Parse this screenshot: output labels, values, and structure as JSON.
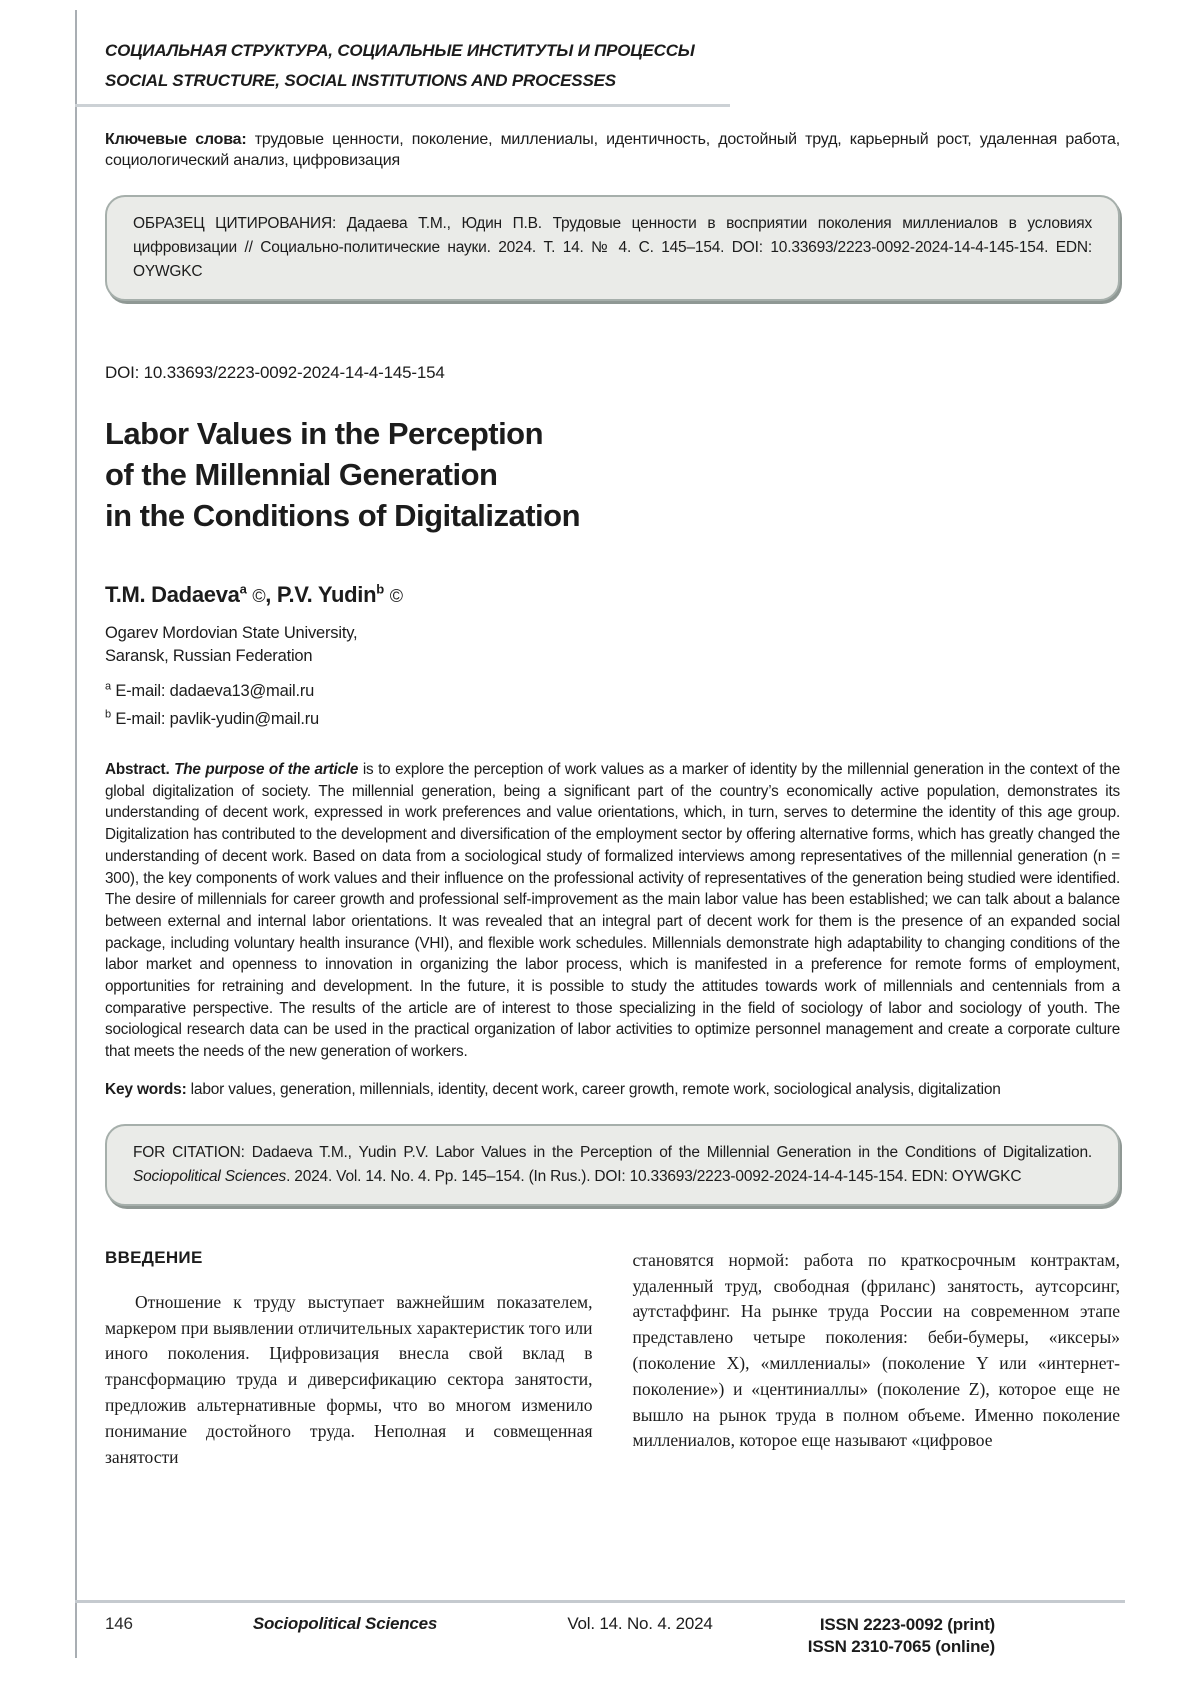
{
  "header": {
    "section_ru": "СОЦИАЛЬНАЯ СТРУКТУРА, СОЦИАЛЬНЫЕ ИНСТИТУТЫ И ПРОЦЕССЫ",
    "section_en": "SOCIAL STRUCTURE, SOCIAL INSTITUTIONS AND PROCESSES"
  },
  "keywords_ru": {
    "label": "Ключевые слова:",
    "text": " трудовые ценности, поколение, миллениалы, идентичность, достойный труд, карьерный рост, удаленная работа, социологический анализ, цифровизация"
  },
  "citation_ru": {
    "text": "ОБРАЗЕЦ ЦИТИРОВАНИЯ: Дадаева Т.М., Юдин П.В. Трудовые ценности в восприятии поколения миллениалов в условиях цифровизации // Социально-политические науки. 2024. Т. 14. № 4. С. 145–154. DOI: 10.33693/2223-0092-2024-14-4-145-154. EDN: OYWGKC"
  },
  "article": {
    "doi": "DOI: 10.33693/2223-0092-2024-14-4-145-154",
    "title": "Labor Values in the Perception\nof the Millennial Generation\nin the Conditions of Digitalization",
    "authors": [
      {
        "name": "T.M. Dadaeva",
        "sup": "a",
        "mark": "©",
        "sep": ", "
      },
      {
        "name": "P.V. Yudin",
        "sup": "b",
        "mark": "©",
        "sep": ""
      }
    ],
    "affiliation": "Ogarev Mordovian State University,\nSaransk, Russian Federation",
    "emails": [
      {
        "sup": "a",
        "text": "E-mail: dadaeva13@mail.ru"
      },
      {
        "sup": "b",
        "text": "E-mail: pavlik-yudin@mail.ru"
      }
    ]
  },
  "abstract": {
    "label": "Abstract.",
    "lead": " The purpose of the article",
    "text": " is to explore the perception of work values as a marker of identity by the millennial generation in the context of the global digitalization of society. The millennial generation, being a significant part of the country’s economically active population, demonstrates its understanding of decent work, expressed in work preferences and value orientations, which, in turn, serves to determine the identity of this age group. Digitalization has contributed to the development and diversification of the employment sector by offering alternative forms, which has greatly changed the understanding of decent work. Based on data from a sociological study of formalized interviews among representatives of the millennial generation (n = 300), the key components of work values and their influence on the professional activity of representatives of the generation being studied were identified. The desire of millennials for career growth and professional self-improvement as the main labor value has been established; we can talk about a balance between external and internal labor orientations. It was revealed that an integral part of decent work for them is the presence of an expanded social package, including voluntary health insurance (VHI), and flexible work schedules. Millennials demonstrate high adaptability to changing conditions of the labor market and openness to innovation in organizing the labor process, which is manifested in a preference for remote forms of employment, opportunities for retraining and development. In the future, it is possible to study the attitudes towards work of millennials and centennials from a comparative perspective. The results of the article are of interest to those specializing in the field of sociology of labor and sociology of youth. The sociological research data can be used in the practical organization of labor activities to optimize personnel management and create a corporate culture that meets the needs of the new generation of workers."
  },
  "keywords_en": {
    "label": "Key words:",
    "text": " labor values, generation, millennials, identity, decent work, career growth, remote work, sociological analysis, digitalization"
  },
  "citation_en": {
    "prefix": "FOR CITATION: Dadaeva T.M., Yudin P.V. Labor Values in the Perception of the Millennial Generation in the Conditions of Digitalization. ",
    "journal_italic": "Sociopolitical Sciences",
    "suffix": ". 2024. Vol. 14. No. 4. Pp. 145–154. (In Rus.). DOI: 10.33693/2223-0092-2024-14-4-145-154. EDN: OYWGKC"
  },
  "body": {
    "intro_heading": "ВВЕДЕНИЕ",
    "left_column": "Отношение к труду выступает важнейшим показателем, маркером при выявлении отличительных характеристик того или иного поколения. Цифровизация внесла свой вклад в трансформацию труда и диверсификацию сектора занятости, предложив альтернативные формы, что во многом изменило понимание достойного труда. Неполная и совмещенная занятости",
    "right_column": "становятся нормой: работа по краткосрочным контрактам, удаленный труд, свободная (фриланс) занятость, аутсорсинг, аутстаффинг. На рынке труда России на современном этапе представлено четыре поколения: беби-бумеры, «иксеры» (поколение X), «миллениалы» (поколение Y или «интернет-поколение») и «центиниаллы» (поколение Z), которое еще не вышло на рынок труда в полном объеме. Именно поколение миллениалов, которое еще называют «цифровое"
  },
  "footer": {
    "page_number": "146",
    "journal": "Sociopolitical Sciences",
    "volume": "Vol. 14. No. 4. 2024",
    "issn_print": "ISSN 2223-0092 (print)",
    "issn_online": "ISSN 2310-7065 (online)"
  }
}
